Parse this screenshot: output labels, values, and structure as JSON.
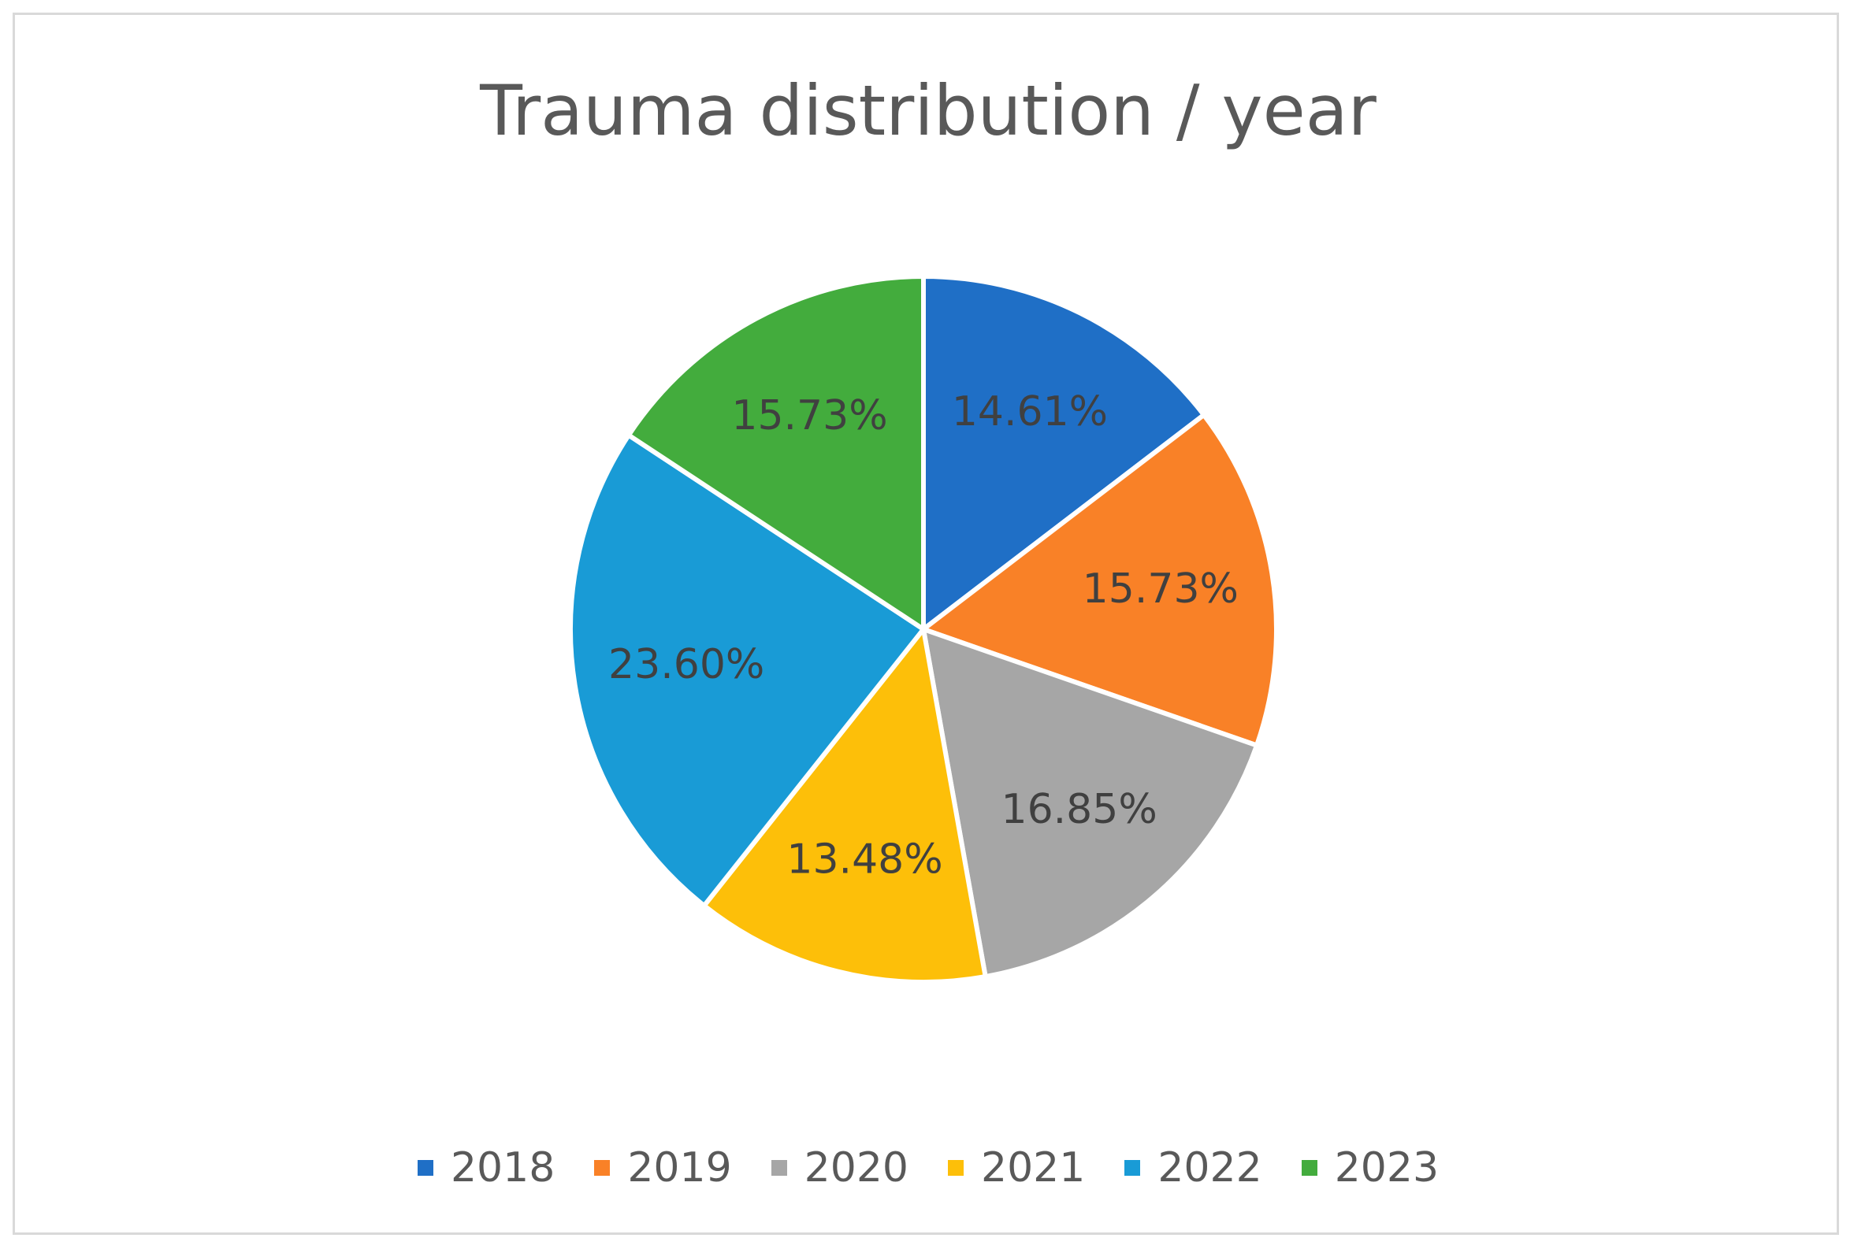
{
  "chart_data": {
    "type": "pie",
    "title": "Trauma distribution / year",
    "categories": [
      "2018",
      "2019",
      "2020",
      "2021",
      "2022",
      "2023"
    ],
    "values": [
      14.61,
      15.73,
      16.85,
      13.48,
      23.6,
      15.73
    ],
    "data_labels": [
      "14.61%",
      "15.73%",
      "16.85%",
      "13.48%",
      "23.60%",
      "15.73%"
    ],
    "colors": [
      "#1f6fc6",
      "#f98127",
      "#a6a6a6",
      "#fdbf09",
      "#199bd6",
      "#43ac3d"
    ],
    "legend_position": "bottom",
    "start_angle": "12 o'clock",
    "direction": "clockwise"
  }
}
